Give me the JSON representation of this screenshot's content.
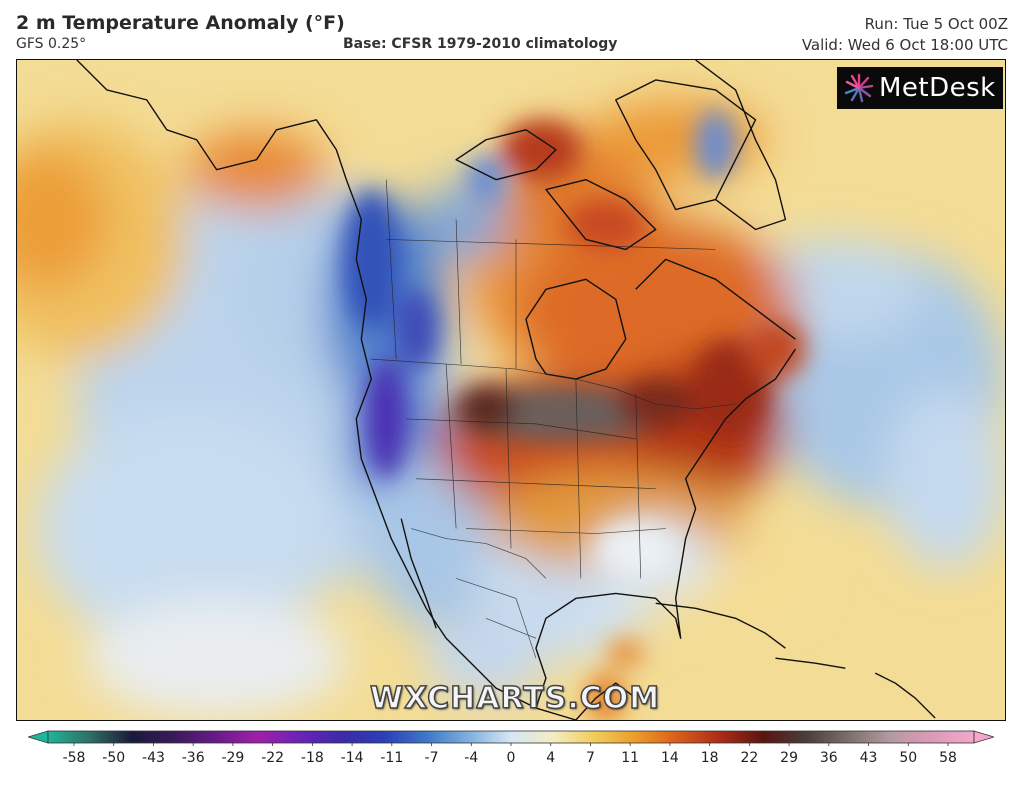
{
  "header": {
    "title": "2 m Temperature Anomaly (°F)",
    "model": "GFS 0.25°",
    "base": "Base: CFSR 1979-2010 climatology",
    "run": "Run: Tue 5 Oct 00Z",
    "valid": "Valid: Wed 6 Oct 18:00 UTC"
  },
  "logo": {
    "text": "MetDesk",
    "icon": "starburst-logo-icon"
  },
  "watermark": "WXCHARTS.COM",
  "colorbar": {
    "ticks": [
      "-58",
      "-50",
      "-43",
      "-36",
      "-29",
      "-22",
      "-18",
      "-14",
      "-11",
      "-7",
      "-4",
      "0",
      "4",
      "7",
      "11",
      "14",
      "18",
      "22",
      "29",
      "36",
      "43",
      "50",
      "58"
    ],
    "colors": [
      "#1fb59a",
      "#2f6e63",
      "#1a1a3a",
      "#3a1a5a",
      "#6a1a8a",
      "#a020a8",
      "#6a22b8",
      "#3b2aa6",
      "#2c3fb8",
      "#3f78c8",
      "#7fb0de",
      "#d6e6f4",
      "#f4ecc4",
      "#f2cc58",
      "#ec9a28",
      "#da5a1a",
      "#aa2a18",
      "#5a1410",
      "#4a3d3a",
      "#7a6e6a",
      "#b49aa0",
      "#dc9ab8",
      "#f2a8cc"
    ]
  },
  "map": {
    "colors": {
      "ocean_blue": "#a7c6e6",
      "warm_yellow": "#f2d27a",
      "hot_orange": "#e88a2e",
      "very_hot": "#b8301a",
      "extreme": "#6a6468",
      "cold_blue": "#3a64c0",
      "cold_purple": "#5b3ab0"
    }
  }
}
